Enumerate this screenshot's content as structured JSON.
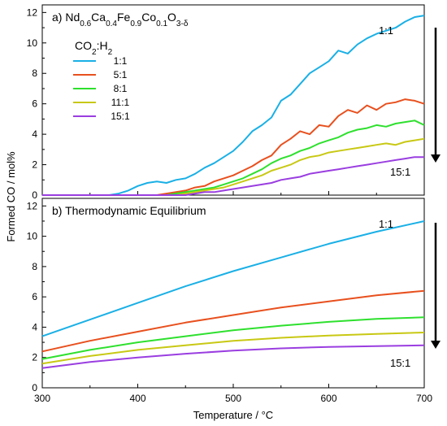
{
  "chart_data": [
    {
      "panel": "a",
      "type": "line",
      "title_parts": {
        "prefix": "a) ",
        "formula": [
          {
            "t": "Nd",
            "sub": false
          },
          {
            "t": "0.6",
            "sub": true
          },
          {
            "t": "Ca",
            "sub": false
          },
          {
            "t": "0.4",
            "sub": true
          },
          {
            "t": "Fe",
            "sub": false
          },
          {
            "t": "0.9",
            "sub": true
          },
          {
            "t": "Co",
            "sub": false
          },
          {
            "t": "0.1",
            "sub": true
          },
          {
            "t": "O",
            "sub": false
          },
          {
            "t": "3-δ",
            "sub": true
          }
        ]
      },
      "legend_title": {
        "main": "CO",
        "sub1": "2",
        "mid": ":H",
        "sub2": "2"
      },
      "legend_placement": "upper-left",
      "xlim": [
        300,
        700
      ],
      "ylim": [
        0,
        12.5
      ],
      "yticks": [
        0,
        2,
        4,
        6,
        8,
        10,
        12
      ],
      "annotations": {
        "top": "1:1",
        "bottom": "15:1"
      },
      "series": [
        {
          "name": "1:1",
          "color": "#1ab0e6",
          "x": [
            300,
            370,
            380,
            390,
            400,
            410,
            420,
            430,
            440,
            450,
            460,
            470,
            480,
            490,
            500,
            510,
            520,
            530,
            540,
            550,
            560,
            570,
            580,
            590,
            600,
            610,
            620,
            630,
            640,
            650,
            660,
            670,
            680,
            690,
            700
          ],
          "y": [
            0,
            0,
            0.1,
            0.3,
            0.6,
            0.8,
            0.9,
            0.8,
            1.0,
            1.1,
            1.4,
            1.8,
            2.1,
            2.5,
            2.9,
            3.5,
            4.2,
            4.6,
            5.1,
            6.2,
            6.6,
            7.3,
            8.0,
            8.4,
            8.8,
            9.5,
            9.3,
            9.9,
            10.3,
            10.6,
            10.8,
            11.0,
            11.4,
            11.7,
            11.8
          ]
        },
        {
          "name": "5:1",
          "color": "#e8501e",
          "x": [
            300,
            420,
            430,
            440,
            450,
            460,
            470,
            480,
            490,
            500,
            510,
            520,
            530,
            540,
            550,
            560,
            570,
            580,
            590,
            600,
            610,
            620,
            630,
            640,
            650,
            660,
            670,
            680,
            690,
            700
          ],
          "y": [
            0,
            0,
            0.1,
            0.2,
            0.3,
            0.5,
            0.6,
            0.9,
            1.1,
            1.3,
            1.6,
            1.9,
            2.3,
            2.6,
            3.3,
            3.7,
            4.2,
            4.0,
            4.6,
            4.5,
            5.2,
            5.6,
            5.4,
            5.9,
            5.6,
            6.0,
            6.1,
            6.3,
            6.2,
            6.0
          ]
        },
        {
          "name": "8:1",
          "color": "#2ee02e",
          "x": [
            300,
            430,
            440,
            450,
            460,
            470,
            480,
            490,
            500,
            510,
            520,
            530,
            540,
            550,
            560,
            570,
            580,
            590,
            600,
            610,
            620,
            630,
            640,
            650,
            660,
            670,
            680,
            690,
            700
          ],
          "y": [
            0,
            0,
            0.1,
            0.2,
            0.3,
            0.4,
            0.5,
            0.7,
            0.9,
            1.1,
            1.4,
            1.7,
            2.1,
            2.4,
            2.6,
            2.9,
            3.1,
            3.4,
            3.6,
            3.8,
            4.1,
            4.3,
            4.4,
            4.6,
            4.5,
            4.7,
            4.8,
            4.9,
            4.6
          ]
        },
        {
          "name": "11:1",
          "color": "#c8c814",
          "x": [
            300,
            440,
            450,
            460,
            470,
            480,
            490,
            500,
            510,
            520,
            530,
            540,
            550,
            560,
            570,
            580,
            590,
            600,
            610,
            620,
            630,
            640,
            650,
            660,
            670,
            680,
            690,
            700
          ],
          "y": [
            0,
            0,
            0.1,
            0.2,
            0.3,
            0.4,
            0.5,
            0.7,
            0.9,
            1.1,
            1.3,
            1.6,
            1.8,
            2.0,
            2.3,
            2.5,
            2.6,
            2.8,
            2.9,
            3.0,
            3.1,
            3.2,
            3.3,
            3.4,
            3.3,
            3.5,
            3.6,
            3.7
          ]
        },
        {
          "name": "15:1",
          "color": "#9a3ee0",
          "x": [
            300,
            450,
            460,
            470,
            480,
            490,
            500,
            510,
            520,
            530,
            540,
            550,
            560,
            570,
            580,
            590,
            600,
            610,
            620,
            630,
            640,
            650,
            660,
            670,
            680,
            690,
            700
          ],
          "y": [
            0,
            0,
            0.1,
            0.2,
            0.2,
            0.3,
            0.4,
            0.5,
            0.6,
            0.7,
            0.8,
            1.0,
            1.1,
            1.2,
            1.4,
            1.5,
            1.6,
            1.7,
            1.8,
            1.9,
            2.0,
            2.1,
            2.2,
            2.3,
            2.4,
            2.5,
            2.5
          ]
        }
      ]
    },
    {
      "panel": "b",
      "type": "line",
      "title_parts": {
        "prefix": "b) Thermodynamic Equilibrium",
        "formula": []
      },
      "xlim": [
        300,
        700
      ],
      "ylim": [
        0,
        12.5
      ],
      "yticks": [
        0,
        2,
        4,
        6,
        8,
        10,
        12
      ],
      "xticks": [
        300,
        400,
        500,
        600,
        700
      ],
      "xlabel": "Temperature / °C",
      "ylabel": "Formed CO / mol%",
      "annotations": {
        "top": "1:1",
        "bottom": "15:1"
      },
      "series": [
        {
          "name": "1:1",
          "color": "#1ab0e6",
          "x": [
            300,
            350,
            400,
            450,
            500,
            550,
            600,
            650,
            700
          ],
          "y": [
            3.4,
            4.5,
            5.6,
            6.7,
            7.7,
            8.6,
            9.5,
            10.3,
            11.0
          ]
        },
        {
          "name": "5:1",
          "color": "#e8501e",
          "x": [
            300,
            350,
            400,
            450,
            500,
            550,
            600,
            650,
            700
          ],
          "y": [
            2.4,
            3.1,
            3.7,
            4.3,
            4.8,
            5.3,
            5.7,
            6.1,
            6.4
          ]
        },
        {
          "name": "8:1",
          "color": "#2ee02e",
          "x": [
            300,
            350,
            400,
            450,
            500,
            550,
            600,
            650,
            700
          ],
          "y": [
            1.9,
            2.5,
            3.0,
            3.4,
            3.8,
            4.1,
            4.35,
            4.55,
            4.65
          ]
        },
        {
          "name": "11:1",
          "color": "#c8c814",
          "x": [
            300,
            350,
            400,
            450,
            500,
            550,
            600,
            650,
            700
          ],
          "y": [
            1.6,
            2.1,
            2.5,
            2.8,
            3.1,
            3.3,
            3.45,
            3.55,
            3.65
          ]
        },
        {
          "name": "15:1",
          "color": "#9a3ee0",
          "x": [
            300,
            350,
            400,
            450,
            500,
            550,
            600,
            650,
            700
          ],
          "y": [
            1.3,
            1.7,
            2.0,
            2.25,
            2.45,
            2.6,
            2.7,
            2.75,
            2.8
          ]
        }
      ]
    }
  ]
}
